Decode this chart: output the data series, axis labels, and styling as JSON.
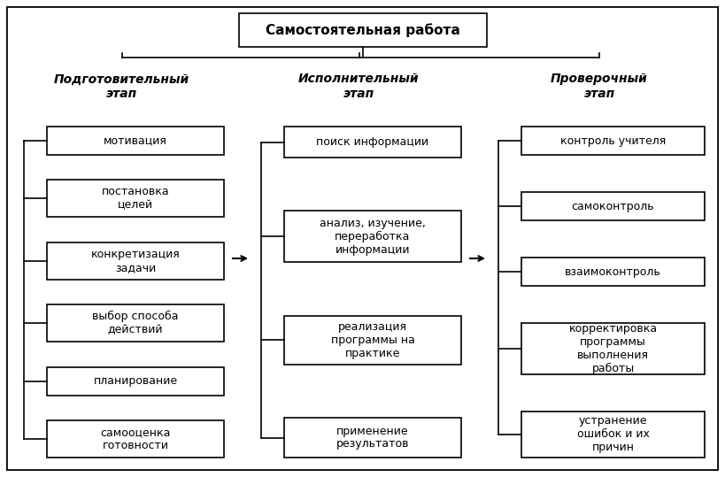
{
  "title": "Самостоятельная работа",
  "col1_header": "Подготовительный\nэтап",
  "col2_header": "Исполнительный\nэтап",
  "col3_header": "Проверочный\nэтап",
  "col1_items": [
    "мотивация",
    "постановка\nцелей",
    "конкретизация\nзадачи",
    "выбор способа\nдействий",
    "планирование",
    "самооценка\nготовности"
  ],
  "col2_items": [
    "поиск информации",
    "анализ, изучение,\nпереработка\nинформации",
    "реализация\nпрограммы на\nпрактике",
    "применение\nрезультатов"
  ],
  "col3_items": [
    "контроль учителя",
    "самоконтроль",
    "взаимоконтроль",
    "корректировка\nпрограммы\nвыполнения\nработы",
    "устранение\nошибок и их\nпричин"
  ],
  "bg_color": "#ffffff",
  "box_color": "#ffffff",
  "box_edge_color": "#000000",
  "text_color": "#000000"
}
